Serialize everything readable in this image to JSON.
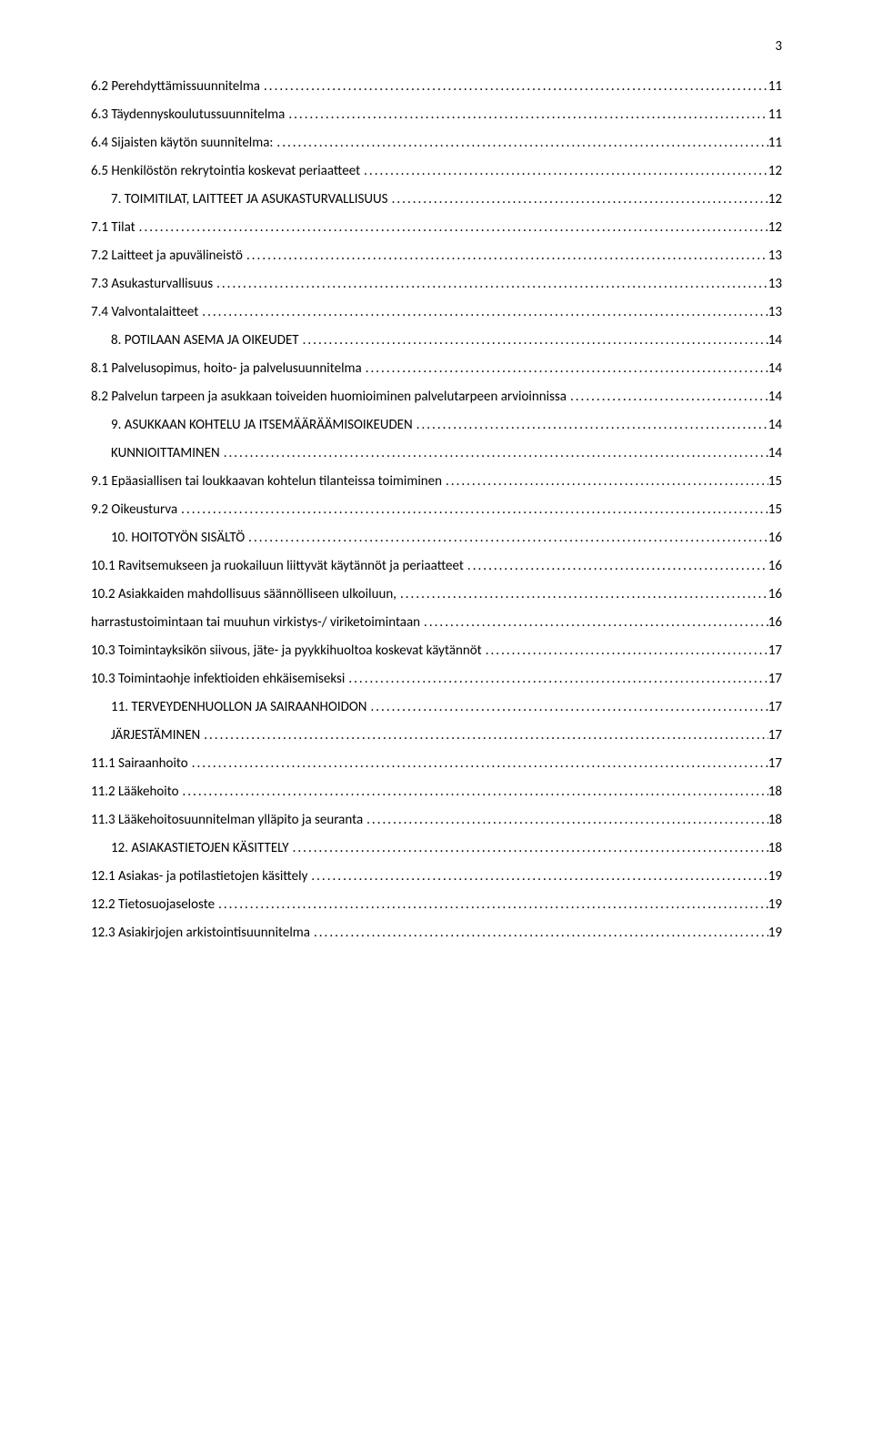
{
  "page_number": "3",
  "font": {
    "family": "Calibri",
    "body_size_pt": 11,
    "color": "#000000"
  },
  "background_color": "#ffffff",
  "toc": [
    {
      "label": "6.2 Perehdyttämissuunnitelma",
      "page": "11",
      "indent": 0
    },
    {
      "label": "6.3 Täydennyskoulutussuunnitelma",
      "page": "11",
      "indent": 0
    },
    {
      "label": "6.4 Sijaisten käytön suunnitelma:",
      "page": "11",
      "indent": 0
    },
    {
      "label": "6.5 Henkilöstön rekrytointia koskevat periaatteet",
      "page": "12",
      "indent": 0
    },
    {
      "label": "7. TOIMITILAT, LAITTEET JA ASUKASTURVALLISUUS",
      "page": "12",
      "indent": 1
    },
    {
      "label": "7.1 Tilat",
      "page": "12",
      "indent": 0
    },
    {
      "label": "7.2 Laitteet ja apuvälineistö",
      "page": "13",
      "indent": 0
    },
    {
      "label": "7.3 Asukasturvallisuus",
      "page": "13",
      "indent": 0
    },
    {
      "label": "7.4 Valvontalaitteet",
      "page": "13",
      "indent": 0
    },
    {
      "label": "8. POTILAAN ASEMA JA OIKEUDET",
      "page": "14",
      "indent": 1
    },
    {
      "label": "8.1 Palvelusopimus, hoito- ja palvelusuunnitelma",
      "page": "14",
      "indent": 0
    },
    {
      "label": "8.2 Palvelun tarpeen ja asukkaan toiveiden huomioiminen palvelutarpeen arvioinnissa",
      "page": "14",
      "indent": 0
    },
    {
      "label": "9. ASUKKAAN KOHTELU JA ITSEMÄÄRÄÄMISOIKEUDEN",
      "page": "14",
      "indent": 1
    },
    {
      "label": "KUNNIOITTAMINEN",
      "page": "14",
      "indent": 1
    },
    {
      "label": "9.1 Epäasiallisen tai loukkaavan kohtelun tilanteissa toimiminen",
      "page": "15",
      "indent": 0
    },
    {
      "label": "9.2 Oikeusturva",
      "page": "15",
      "indent": 0
    },
    {
      "label": "10. HOITOTYÖN SISÄLTÖ",
      "page": "16",
      "indent": 1
    },
    {
      "label": "10.1 Ravitsemukseen ja ruokailuun liittyvät käytännöt ja periaatteet",
      "page": "16",
      "indent": 0
    },
    {
      "label": "10.2 Asiakkaiden mahdollisuus säännölliseen ulkoiluun,",
      "page": "16",
      "indent": 0
    },
    {
      "label": "harrastustoimintaan tai muuhun virkistys-/ viriketoimintaan",
      "page": "16",
      "indent": 0
    },
    {
      "label": "10.3 Toimintayksikön siivous, jäte- ja pyykkihuoltoa koskevat käytännöt",
      "page": "17",
      "indent": 0
    },
    {
      "label": "10.3 Toimintaohje infektioiden ehkäisemiseksi",
      "page": "17",
      "indent": 0
    },
    {
      "label": "11. TERVEYDENHUOLLON JA SAIRAANHOIDON",
      "page": "17",
      "indent": 1
    },
    {
      "label": "JÄRJESTÄMINEN",
      "page": "17",
      "indent": 1
    },
    {
      "label": "11.1 Sairaanhoito",
      "page": "17",
      "indent": 0
    },
    {
      "label": "11.2 Lääkehoito",
      "page": "18",
      "indent": 0
    },
    {
      "label": "11.3 Lääkehoitosuunnitelman ylläpito ja seuranta",
      "page": "18",
      "indent": 0
    },
    {
      "label": "12. ASIAKASTIETOJEN KÄSITTELY",
      "page": "18",
      "indent": 1
    },
    {
      "label": "12.1 Asiakas- ja potilastietojen käsittely",
      "page": "19",
      "indent": 0
    },
    {
      "label": "12.2 Tietosuojaseloste",
      "page": "19",
      "indent": 0
    },
    {
      "label": "12.3 Asiakirjojen arkistointisuunnitelma",
      "page": "19",
      "indent": 0
    }
  ]
}
